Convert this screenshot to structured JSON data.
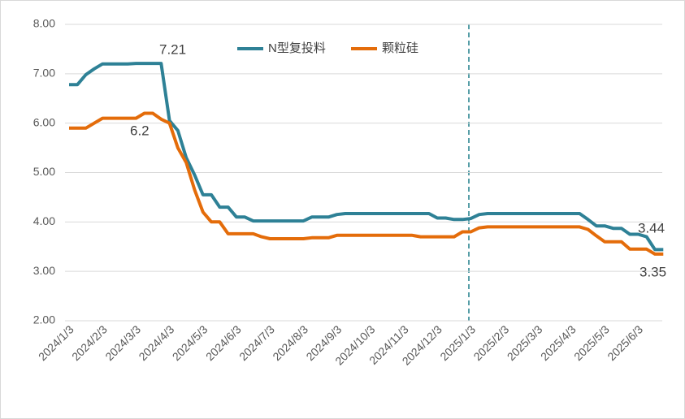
{
  "chart_data": {
    "type": "line",
    "categories": [
      "2024/1/3",
      null,
      null,
      null,
      "2024/2/3",
      null,
      null,
      null,
      "2024/3/3",
      null,
      null,
      null,
      "2024/4/3",
      null,
      null,
      null,
      "2024/5/3",
      null,
      null,
      null,
      "2024/6/3",
      null,
      null,
      null,
      "2024/7/3",
      null,
      null,
      null,
      "2024/8/3",
      null,
      null,
      null,
      "2024/9/3",
      null,
      null,
      null,
      "2024/10/3",
      null,
      null,
      null,
      "2024/11/3",
      null,
      null,
      null,
      "2024/12/3",
      null,
      null,
      null,
      "2025/1/3",
      null,
      null,
      null,
      "2025/2/3",
      null,
      null,
      null,
      "2025/3/3",
      null,
      null,
      null,
      "2025/4/3",
      null,
      null,
      null,
      "2025/5/3",
      null,
      null,
      null,
      "2025/6/3",
      null,
      null,
      null
    ],
    "series": [
      {
        "name": "N型复投料",
        "color": "#2e8196",
        "values": [
          6.78,
          6.78,
          6.98,
          7.1,
          7.2,
          7.2,
          7.2,
          7.2,
          7.21,
          7.21,
          7.21,
          7.21,
          6.05,
          5.85,
          5.3,
          4.95,
          4.55,
          4.55,
          4.3,
          4.3,
          4.1,
          4.1,
          4.02,
          4.02,
          4.02,
          4.02,
          4.02,
          4.02,
          4.02,
          4.1,
          4.1,
          4.1,
          4.15,
          4.17,
          4.17,
          4.17,
          4.17,
          4.17,
          4.17,
          4.17,
          4.17,
          4.17,
          4.17,
          4.17,
          4.08,
          4.08,
          4.05,
          4.05,
          4.07,
          4.15,
          4.17,
          4.17,
          4.17,
          4.17,
          4.17,
          4.17,
          4.17,
          4.17,
          4.17,
          4.17,
          4.17,
          4.17,
          4.05,
          3.92,
          3.92,
          3.87,
          3.87,
          3.75,
          3.75,
          3.7,
          3.44,
          3.44
        ]
      },
      {
        "name": "颗粒硅",
        "color": "#e46c0a",
        "values": [
          5.9,
          5.9,
          5.9,
          6.0,
          6.1,
          6.1,
          6.1,
          6.1,
          6.1,
          6.2,
          6.2,
          6.08,
          6.0,
          5.5,
          5.2,
          4.65,
          4.2,
          4.0,
          4.0,
          3.76,
          3.76,
          3.76,
          3.76,
          3.7,
          3.66,
          3.66,
          3.66,
          3.66,
          3.66,
          3.68,
          3.68,
          3.68,
          3.73,
          3.73,
          3.73,
          3.73,
          3.73,
          3.73,
          3.73,
          3.73,
          3.73,
          3.73,
          3.7,
          3.7,
          3.7,
          3.7,
          3.7,
          3.8,
          3.8,
          3.88,
          3.9,
          3.9,
          3.9,
          3.9,
          3.9,
          3.9,
          3.9,
          3.9,
          3.9,
          3.9,
          3.9,
          3.9,
          3.85,
          3.72,
          3.6,
          3.6,
          3.6,
          3.45,
          3.45,
          3.45,
          3.35,
          3.35
        ]
      }
    ],
    "annotations": [
      "7.21",
      "6.2",
      "3.44",
      "3.35"
    ],
    "ylim": [
      2,
      8
    ],
    "yticks": [
      {
        "value": 2,
        "label": "2.00"
      },
      {
        "value": 3,
        "label": "3.00"
      },
      {
        "value": 4,
        "label": "4.00"
      },
      {
        "value": 5,
        "label": "5.00"
      },
      {
        "value": 6,
        "label": "6.00"
      },
      {
        "value": 7,
        "label": "7.00"
      },
      {
        "value": 8,
        "label": "8.00"
      }
    ],
    "grid": true,
    "legend": "top"
  }
}
